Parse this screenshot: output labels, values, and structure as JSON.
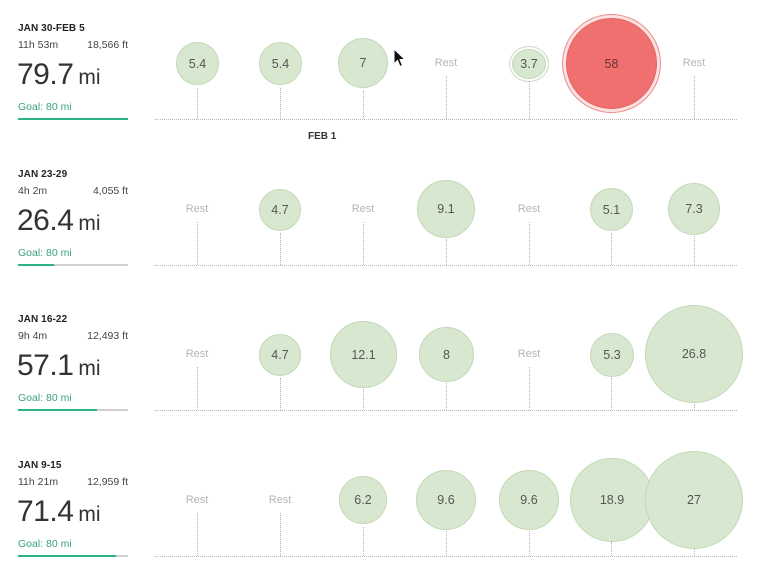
{
  "weeks": [
    {
      "title": "JAN 30-FEB 5",
      "time": "11h 53m",
      "elevation": "18,566 ft",
      "distance": "79.7",
      "unit": "mi",
      "goal": "Goal: 80 mi",
      "progress": 0.996,
      "days": [
        "5.4",
        "5.4",
        "7",
        "Rest",
        "3.7",
        "58",
        "Rest"
      ],
      "highlight_color": "#f07070",
      "date_marker": "FEB 1"
    },
    {
      "title": "JAN 23-29",
      "time": "4h 2m",
      "elevation": "4,055 ft",
      "distance": "26.4",
      "unit": "mi",
      "goal": "Goal: 80 mi",
      "progress": 0.33,
      "days": [
        "Rest",
        "4.7",
        "Rest",
        "9.1",
        "Rest",
        "5.1",
        "7.3"
      ]
    },
    {
      "title": "JAN 16-22",
      "time": "9h 4m",
      "elevation": "12,493 ft",
      "distance": "57.1",
      "unit": "mi",
      "goal": "Goal: 80 mi",
      "progress": 0.714,
      "days": [
        "Rest",
        "4.7",
        "12.1",
        "8",
        "Rest",
        "5.3",
        "26.8"
      ]
    },
    {
      "title": "JAN 9-15",
      "time": "11h 21m",
      "elevation": "12,959 ft",
      "distance": "71.4",
      "unit": "mi",
      "goal": "Goal: 80 mi",
      "progress": 0.893,
      "days": [
        "Rest",
        "Rest",
        "6.2",
        "9.6",
        "9.6",
        "18.9",
        "27"
      ]
    }
  ],
  "colors": {
    "bubble": "#d8e8d0",
    "highlight": "#f07070",
    "goal_bar": "#2bb38a"
  },
  "icons": {
    "cursor": "mouse-pointer-icon"
  }
}
